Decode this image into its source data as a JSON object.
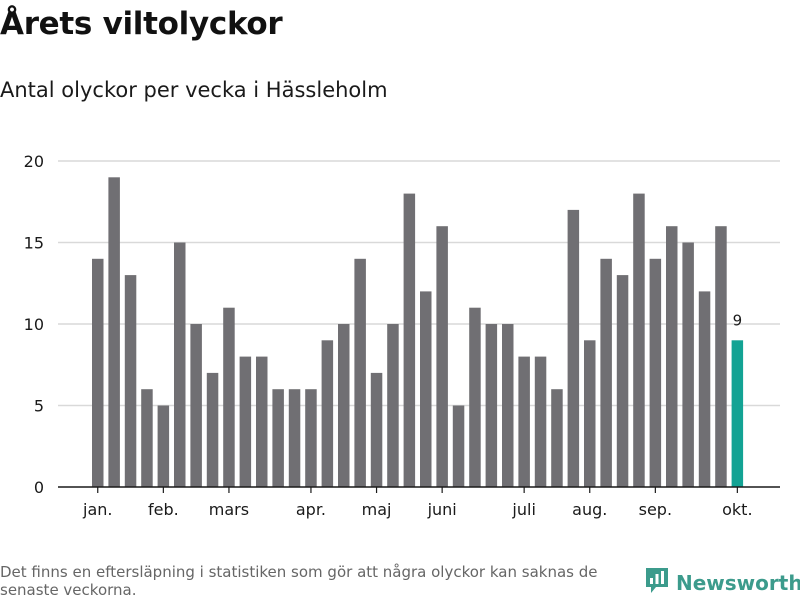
{
  "title": "Årets viltolyckor",
  "subtitle": "Antal olyckor per vecka i Hässleholm",
  "footnote": "Det finns en eftersläpning i statistiken som gör att några olyckor kan saknas de senaste veckorna.",
  "brand": {
    "name": "Newsworthy",
    "icon": "newsworthy-logo-icon"
  },
  "colors": {
    "bar": "#706f73",
    "highlight": "#13a394",
    "grid": "#d9d9d9",
    "axis": "#1a1a1a",
    "text": "#1a1a1a",
    "brand": "#3c9b8c"
  },
  "chart_data": {
    "type": "bar",
    "title": "Årets viltolyckor",
    "subtitle": "Antal olyckor per vecka i Hässleholm",
    "xlabel": "",
    "ylabel": "",
    "ylim": [
      0,
      20
    ],
    "yticks": [
      0,
      5,
      10,
      15,
      20
    ],
    "grid": true,
    "legend": "none",
    "weeks": [
      1,
      2,
      3,
      4,
      5,
      6,
      7,
      8,
      9,
      10,
      11,
      12,
      13,
      14,
      15,
      16,
      17,
      18,
      19,
      20,
      21,
      22,
      23,
      24,
      25,
      26,
      27,
      28,
      29,
      30,
      31,
      32,
      33,
      34,
      35,
      36,
      37,
      38,
      39,
      40
    ],
    "values": [
      14,
      19,
      13,
      6,
      5,
      15,
      10,
      7,
      11,
      8,
      8,
      6,
      6,
      6,
      9,
      10,
      14,
      7,
      10,
      18,
      12,
      16,
      5,
      11,
      10,
      10,
      8,
      8,
      6,
      17,
      9,
      14,
      13,
      18,
      14,
      16,
      15,
      12,
      16,
      9
    ],
    "highlight_index": 39,
    "highlight_label": "9",
    "month_labels": [
      {
        "label": "jan.",
        "week": 1
      },
      {
        "label": "feb.",
        "week": 5
      },
      {
        "label": "mars",
        "week": 9
      },
      {
        "label": "apr.",
        "week": 14
      },
      {
        "label": "maj",
        "week": 18
      },
      {
        "label": "juni",
        "week": 22
      },
      {
        "label": "juli",
        "week": 27
      },
      {
        "label": "aug.",
        "week": 31
      },
      {
        "label": "sep.",
        "week": 35
      },
      {
        "label": "okt.",
        "week": 40
      }
    ]
  }
}
